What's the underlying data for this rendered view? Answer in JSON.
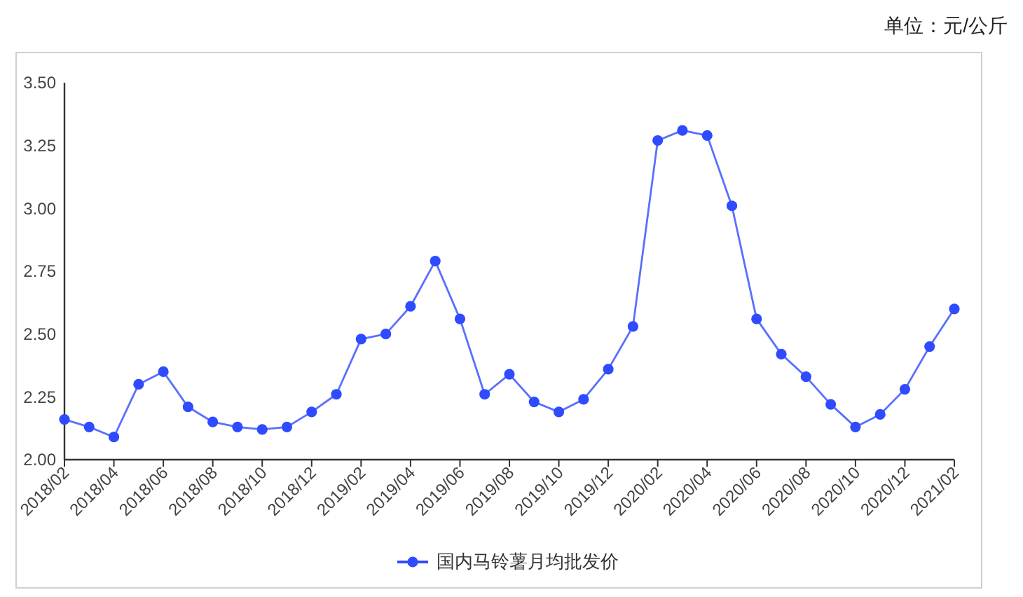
{
  "chart_data": {
    "type": "line",
    "categories": [
      "2018/02",
      null,
      "2018/04",
      null,
      "2018/06",
      null,
      "2018/08",
      null,
      "2018/10",
      null,
      "2018/12",
      null,
      "2019/02",
      null,
      "2019/04",
      null,
      "2019/06",
      null,
      "2019/08",
      null,
      "2019/10",
      null,
      "2019/12",
      null,
      "2020/02",
      null,
      "2020/04",
      null,
      "2020/06",
      null,
      "2020/08",
      null,
      "2020/10",
      null,
      "2020/12",
      null,
      "2021/02"
    ],
    "series": [
      {
        "name": "国内马铃薯月均批发价",
        "color": "#2f4bff",
        "values": [
          2.16,
          2.13,
          2.09,
          2.3,
          2.35,
          2.21,
          2.15,
          2.13,
          2.12,
          2.13,
          2.19,
          2.26,
          2.48,
          2.5,
          2.61,
          2.79,
          2.56,
          2.26,
          2.34,
          2.23,
          2.19,
          2.24,
          2.36,
          2.53,
          3.27,
          3.31,
          3.29,
          3.01,
          2.56,
          2.42,
          2.33,
          2.22,
          2.13,
          2.18,
          2.28,
          2.45,
          2.6
        ]
      }
    ],
    "ylim": [
      2,
      3.5
    ],
    "yticks": [
      {
        "value": 2,
        "label": "2.00"
      },
      {
        "value": 2.25,
        "label": "2.25"
      },
      {
        "value": 2.5,
        "label": "2.50"
      },
      {
        "value": 2.75,
        "label": "2.75"
      },
      {
        "value": 3,
        "label": "3.00"
      },
      {
        "value": 3.25,
        "label": "3.25"
      },
      {
        "value": 3.5,
        "label": "3.50"
      }
    ],
    "annotations": [
      "单位：元/公斤"
    ],
    "legend": "bottom",
    "marker": "circle",
    "line_style": "solid"
  }
}
